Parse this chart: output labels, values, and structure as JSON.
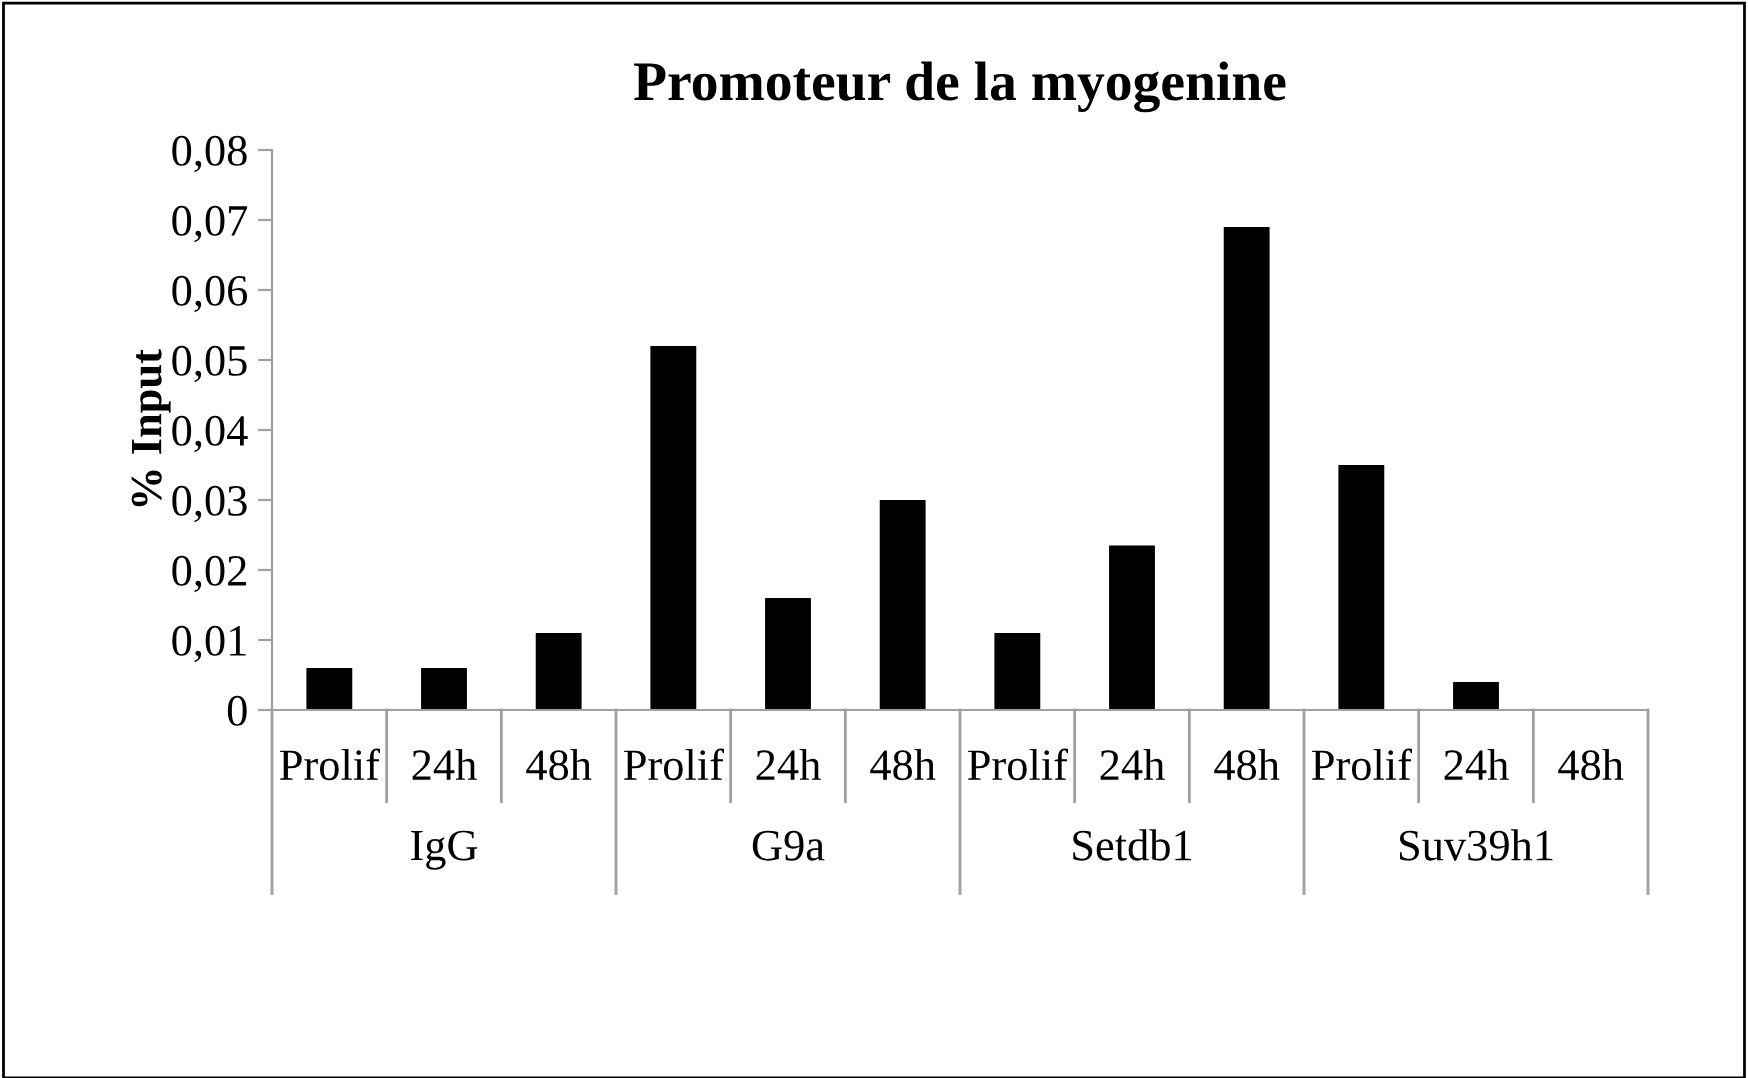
{
  "chart_data": {
    "type": "bar",
    "title": "Promoteur de la myogenine",
    "ylabel": "% Input",
    "categories": [
      "Prolif",
      "24h",
      "48h",
      "Prolif",
      "24h",
      "48h",
      "Prolif",
      "24h",
      "48h",
      "Prolif",
      "24h",
      "48h"
    ],
    "values": [
      0.006,
      0.006,
      0.011,
      0.052,
      0.016,
      0.03,
      0.011,
      0.0235,
      0.069,
      0.035,
      0.004,
      0
    ],
    "color": "#000000",
    "annotations": [
      "IgG",
      "G9a",
      "Setdb1",
      "Suv39h1"
    ],
    "ylim": [
      0,
      0.08
    ],
    "yticks": [
      {
        "value": 0,
        "label": "0"
      },
      {
        "value": 0.01,
        "label": "0,01"
      },
      {
        "value": 0.02,
        "label": "0,02"
      },
      {
        "value": 0.03,
        "label": "0,03"
      },
      {
        "value": 0.04,
        "label": "0,04"
      },
      {
        "value": 0.05,
        "label": "0,05"
      },
      {
        "value": 0.06,
        "label": "0,06"
      },
      {
        "value": 0.07,
        "label": "0,07"
      },
      {
        "value": 0.08,
        "label": "0,08"
      }
    ],
    "grid": false,
    "legend": false
  }
}
